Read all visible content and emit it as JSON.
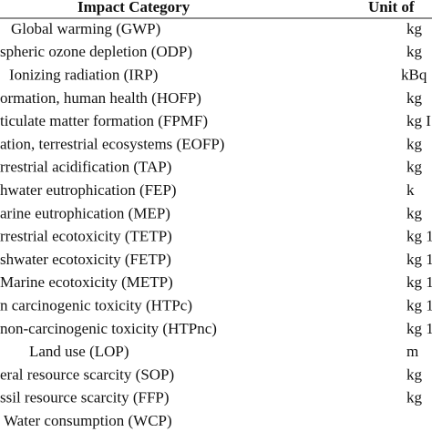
{
  "table": {
    "header": [
      "Impact Category",
      "Unit of"
    ],
    "rows": [
      [
        "Global warming (GWP)",
        "kg"
      ],
      [
        "spheric ozone depletion (ODP)",
        "kg"
      ],
      [
        "Ionizing radiation (IRP)",
        "kBq"
      ],
      [
        "ormation, human health (HOFP)",
        "kg"
      ],
      [
        "ticulate matter formation (FPMF)",
        "kg I"
      ],
      [
        "ation, terrestrial ecosystems (EOFP)",
        "kg"
      ],
      [
        "rrestrial acidification (TAP)",
        "kg"
      ],
      [
        "hwater eutrophication (FEP)",
        "k"
      ],
      [
        "arine eutrophication (MEP)",
        "kg"
      ],
      [
        "rrestrial ecotoxicity (TETP)",
        "kg 1"
      ],
      [
        "shwater ecotoxicity (FETP)",
        "kg 1"
      ],
      [
        "Marine ecotoxicity (METP)",
        "kg 1"
      ],
      [
        "n carcinogenic toxicity (HTPc)",
        "kg 1"
      ],
      [
        "non-carcinogenic toxicity (HTPnc)",
        "kg 1"
      ],
      [
        "Land use (LOP)",
        "m"
      ],
      [
        "eral resource scarcity (SOP)",
        "kg"
      ],
      [
        "ssil resource scarcity (FFP)",
        "kg"
      ],
      [
        "Water consumption (WCP)"
      ]
    ]
  }
}
